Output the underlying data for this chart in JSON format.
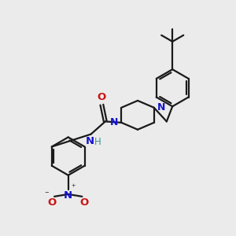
{
  "background_color": "#ebebeb",
  "bond_color": "#1a1a1a",
  "nitrogen_color": "#1414cc",
  "oxygen_color": "#cc1414",
  "hydrogen_color": "#3a9090",
  "line_width": 1.6,
  "figsize": [
    3.0,
    3.0
  ],
  "dpi": 100,
  "xlim": [
    0,
    10
  ],
  "ylim": [
    0,
    10
  ]
}
